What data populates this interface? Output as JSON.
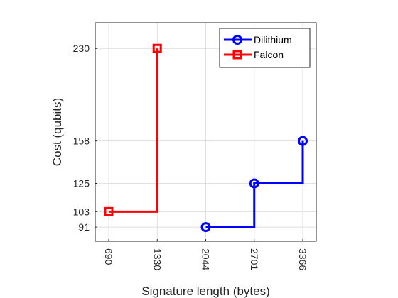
{
  "chart_data": {
    "type": "line",
    "line_shape": "step",
    "title": "",
    "xlabel": "Signature length (bytes)",
    "ylabel": "Cost (qubits)",
    "x_scale": "categorical",
    "x_ticks": [
      690,
      1330,
      2044,
      2701,
      3366
    ],
    "y_ticks": [
      91,
      103,
      125,
      158,
      230
    ],
    "ylim": [
      80,
      250
    ],
    "grid": true,
    "legend_position": "top-right",
    "series": [
      {
        "name": "Dilithium",
        "color": "#0000ff",
        "marker": "circle",
        "x": [
          2044,
          2701,
          3366
        ],
        "y": [
          91,
          125,
          158
        ]
      },
      {
        "name": "Falcon",
        "color": "#ff0000",
        "marker": "square",
        "x": [
          690,
          1330
        ],
        "y": [
          103,
          230
        ]
      }
    ]
  }
}
